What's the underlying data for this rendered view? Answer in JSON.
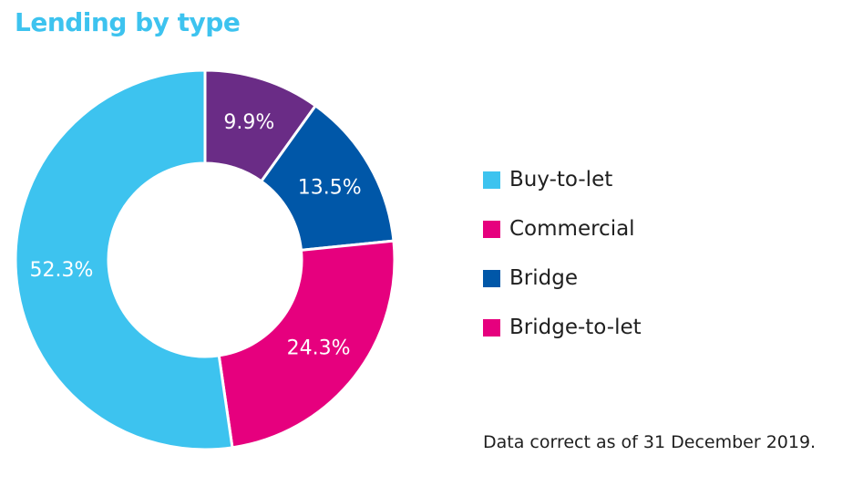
{
  "title": "Lending by type",
  "footnote": "Data correct as of 31 December 2019.",
  "legend": [
    {
      "label": "Buy-to-let",
      "color": "#3dc3ef"
    },
    {
      "label": "Commercial",
      "color": "#e6007e"
    },
    {
      "label": "Bridge",
      "color": "#0057a8"
    },
    {
      "label": "Bridge-to-let",
      "color": "#e6007e"
    }
  ],
  "chart_data": {
    "type": "pie",
    "donut": true,
    "title": "Lending by type",
    "slices": [
      {
        "value": 9.9,
        "label": "9.9%",
        "color": "#6a2c86"
      },
      {
        "value": 13.5,
        "label": "13.5%",
        "color": "#0057a8"
      },
      {
        "value": 24.3,
        "label": "24.3%",
        "color": "#e6007e"
      },
      {
        "value": 52.3,
        "label": "52.3%",
        "color": "#3dc3ef"
      }
    ],
    "legend_position": "right"
  }
}
